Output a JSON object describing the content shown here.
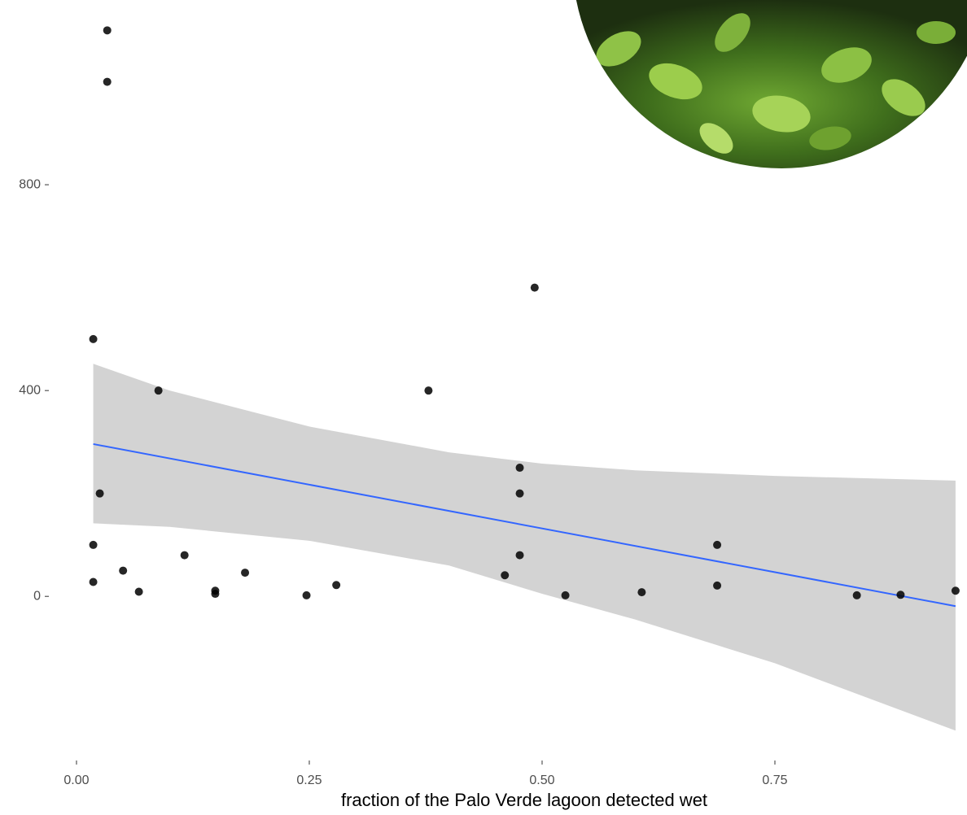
{
  "chart_data": {
    "type": "scatter",
    "x_label": "fraction of the Palo Verde lagoon detected wet",
    "xlim": [
      -0.0297,
      0.9563
    ],
    "ylim": [
      -319,
      1159
    ],
    "xticks": [
      {
        "value": 0,
        "label": "0.00"
      },
      {
        "value": 0.25,
        "label": "0.25"
      },
      {
        "value": 0.5,
        "label": "0.50"
      },
      {
        "value": 0.75,
        "label": "0.75"
      }
    ],
    "yticks": [
      0,
      400,
      800
    ],
    "grid": false,
    "series": [
      {
        "color": "#000000",
        "x": [
          0.033,
          0.033,
          0.018,
          0.088,
          0.025,
          0.018,
          0.018,
          0.05,
          0.067,
          0.116,
          0.149,
          0.149,
          0.181,
          0.247,
          0.279,
          0.378,
          0.492,
          0.476,
          0.476,
          0.476,
          0.46,
          0.525,
          0.607,
          0.688,
          0.688,
          0.838,
          0.885,
          0.944
        ],
        "values": [
          1100,
          1000,
          500,
          400,
          200,
          100,
          28,
          50,
          9,
          80,
          11,
          5,
          46,
          2,
          22,
          400,
          600,
          250,
          200,
          80,
          41,
          2,
          8,
          100,
          21,
          2,
          3,
          11
        ]
      }
    ],
    "fit": {
      "color": "#3366ff",
      "x": [
        0.018,
        0.944
      ],
      "values": [
        296,
        -19
      ]
    },
    "ribbon": {
      "color": "#d3d3d3",
      "x": [
        0.018,
        0.1,
        0.25,
        0.4,
        0.5,
        0.6,
        0.75,
        0.944
      ],
      "upper": [
        452,
        400,
        330,
        280,
        258,
        245,
        234,
        225
      ],
      "lower": [
        142,
        135,
        108,
        60,
        5,
        -45,
        -130,
        -261
      ]
    }
  }
}
